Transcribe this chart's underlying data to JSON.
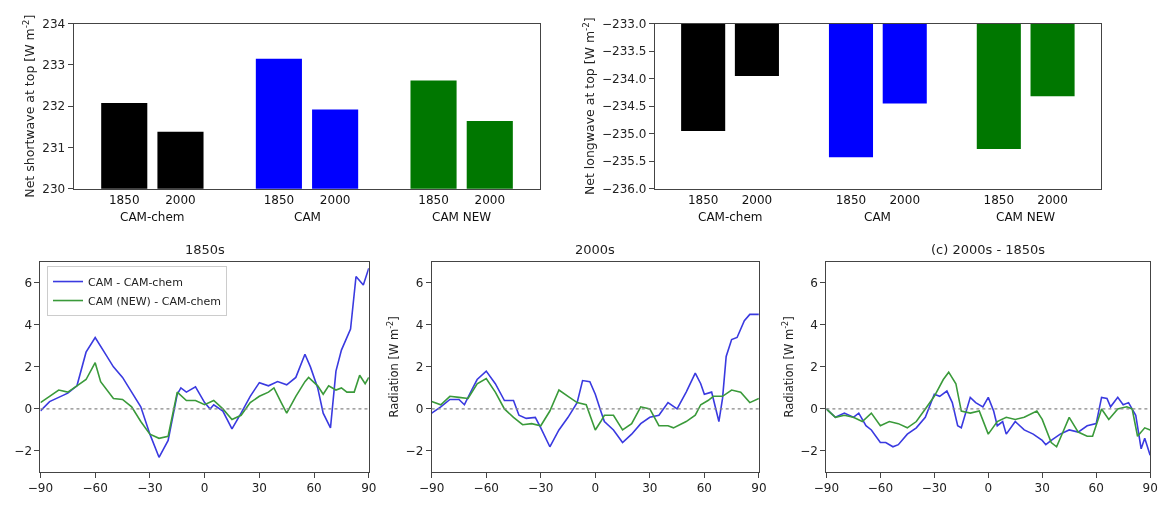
{
  "chart_data": [
    {
      "type": "bar",
      "ylabel": "Net shortwave at top [W m$^{-2}$]",
      "categories": [
        "1850",
        "2000",
        "1850",
        "2000",
        "1850",
        "2000"
      ],
      "values": [
        232.08,
        231.38,
        233.15,
        231.92,
        232.62,
        231.64
      ],
      "colors": [
        "#000000",
        "#000000",
        "#0000ff",
        "#0000ff",
        "#007700",
        "#007700"
      ],
      "ylim": [
        230,
        234
      ],
      "yticks": [
        230,
        231,
        232,
        233,
        234
      ],
      "annotations": [
        "CAM-chem",
        "CAM",
        "CAM NEW"
      ]
    },
    {
      "type": "bar",
      "ylabel": "Net longwave at top [W m$^{-2}$]",
      "categories": [
        "1850",
        "2000",
        "1850",
        "2000",
        "1850",
        "2000"
      ],
      "values": [
        -234.95,
        -233.95,
        -235.43,
        -234.45,
        -235.28,
        -234.32
      ],
      "colors": [
        "#000000",
        "#000000",
        "#0000ff",
        "#0000ff",
        "#007700",
        "#007700"
      ],
      "ylim": [
        -236,
        -233
      ],
      "yticks": [
        {
          "value": -236,
          "label": "−236.0"
        },
        {
          "value": -235.5,
          "label": "−235.5"
        },
        {
          "value": -235,
          "label": "−235.0"
        },
        {
          "value": -234.5,
          "label": "−234.5"
        },
        {
          "value": -234,
          "label": "−234.0"
        },
        {
          "value": -233.5,
          "label": "−233.5"
        },
        {
          "value": -233,
          "label": "−233.0"
        }
      ],
      "annotations": [
        "CAM-chem",
        "CAM",
        "CAM NEW"
      ]
    },
    {
      "type": "line",
      "title": "1850s",
      "xlim": [
        -90,
        90
      ],
      "xticks": [
        {
          "value": -90,
          "label": "−90"
        },
        {
          "value": -60,
          "label": "−60"
        },
        {
          "value": -30,
          "label": "−30"
        },
        0,
        30,
        60,
        90
      ],
      "ylim": [
        -3,
        7
      ],
      "yticks": [
        {
          "value": -2,
          "label": "−2"
        },
        0,
        2,
        4,
        6
      ],
      "legend": "top left",
      "ref_lines": [
        {
          "axis": "y",
          "value": 0,
          "color": "#888888",
          "line_style": "dotted"
        }
      ],
      "series": [
        {
          "name": "CAM - CAM-chem",
          "color": "#3a3ae0",
          "x": [
            -90,
            -85,
            -80,
            -75,
            -70,
            -65,
            -60,
            -55,
            -50,
            -45,
            -40,
            -35,
            -30,
            -25,
            -20,
            -15,
            -13,
            -10,
            -5,
            0,
            3,
            5,
            10,
            15,
            20,
            25,
            30,
            35,
            40,
            45,
            50,
            55,
            58,
            62,
            65,
            69,
            72,
            75,
            80,
            83,
            87,
            90
          ],
          "values": [
            -0.1,
            0.35,
            0.55,
            0.75,
            1.1,
            2.7,
            3.4,
            2.7,
            2.0,
            1.5,
            0.8,
            0.1,
            -1.2,
            -2.3,
            -1.5,
            0.7,
            1.0,
            0.8,
            1.05,
            0.3,
            0.0,
            0.2,
            -0.1,
            -0.95,
            -0.2,
            0.6,
            1.25,
            1.1,
            1.3,
            1.15,
            1.5,
            2.6,
            2.0,
            1.0,
            -0.2,
            -0.9,
            1.8,
            2.8,
            3.8,
            6.3,
            5.9,
            6.7
          ]
        },
        {
          "name": "CAM (NEW) - CAM-chem",
          "color": "#3a9a3a",
          "x": [
            -90,
            -85,
            -80,
            -75,
            -70,
            -65,
            -60,
            -57,
            -50,
            -45,
            -40,
            -35,
            -30,
            -25,
            -20,
            -15,
            -10,
            -5,
            0,
            5,
            10,
            15,
            20,
            25,
            30,
            35,
            38,
            42,
            45,
            50,
            55,
            57,
            62,
            65,
            68,
            72,
            75,
            78,
            82,
            85,
            88,
            90
          ],
          "values": [
            0.3,
            0.6,
            0.9,
            0.8,
            1.1,
            1.4,
            2.2,
            1.3,
            0.5,
            0.45,
            0.1,
            -0.6,
            -1.2,
            -1.4,
            -1.3,
            0.8,
            0.4,
            0.4,
            0.2,
            0.4,
            0.0,
            -0.5,
            -0.3,
            0.3,
            0.6,
            0.8,
            1.0,
            0.3,
            -0.2,
            0.6,
            1.3,
            1.5,
            1.1,
            0.7,
            1.1,
            0.9,
            1.0,
            0.8,
            0.8,
            1.6,
            1.2,
            1.5
          ]
        }
      ]
    },
    {
      "type": "line",
      "title": "2000s",
      "ylabel": "Radiation [W m$^{-2}$]",
      "xlim": [
        -90,
        90
      ],
      "xticks": [
        {
          "value": -90,
          "label": "−90"
        },
        {
          "value": -60,
          "label": "−60"
        },
        {
          "value": -30,
          "label": "−30"
        },
        0,
        30,
        60,
        90
      ],
      "ylim": [
        -3,
        7
      ],
      "yticks": [
        {
          "value": -2,
          "label": "−2"
        },
        0,
        2,
        4,
        6
      ],
      "ref_lines": [
        {
          "axis": "y",
          "value": 0,
          "color": "#888888",
          "line_style": "dotted"
        }
      ],
      "series": [
        {
          "color": "#3a3ae0",
          "x": [
            -90,
            -85,
            -80,
            -75,
            -72,
            -68,
            -65,
            -60,
            -55,
            -50,
            -45,
            -42,
            -38,
            -33,
            -30,
            -25,
            -20,
            -15,
            -10,
            -7,
            -3,
            0,
            3,
            5,
            10,
            15,
            20,
            25,
            30,
            35,
            40,
            45,
            50,
            55,
            58,
            60,
            64,
            68,
            70,
            72,
            75,
            78,
            82,
            85,
            90
          ],
          "values": [
            -0.2,
            0.1,
            0.45,
            0.45,
            0.2,
            0.9,
            1.4,
            1.8,
            1.2,
            0.4,
            0.4,
            -0.3,
            -0.45,
            -0.4,
            -0.9,
            -1.8,
            -1.0,
            -0.4,
            0.3,
            1.35,
            1.3,
            0.7,
            -0.1,
            -0.6,
            -1.0,
            -1.6,
            -1.2,
            -0.7,
            -0.4,
            -0.3,
            0.3,
            0.0,
            0.8,
            1.7,
            1.2,
            0.7,
            0.8,
            -0.6,
            0.5,
            2.5,
            3.3,
            3.4,
            4.2,
            4.5,
            4.5
          ]
        },
        {
          "color": "#3a9a3a",
          "x": [
            -90,
            -85,
            -80,
            -75,
            -70,
            -65,
            -60,
            -55,
            -50,
            -45,
            -40,
            -35,
            -30,
            -25,
            -20,
            -15,
            -10,
            -5,
            0,
            3,
            5,
            10,
            15,
            20,
            25,
            30,
            35,
            40,
            43,
            50,
            55,
            58,
            62,
            65,
            70,
            75,
            80,
            85,
            90
          ],
          "values": [
            0.35,
            0.2,
            0.6,
            0.55,
            0.5,
            1.2,
            1.45,
            0.8,
            0.0,
            -0.4,
            -0.75,
            -0.7,
            -0.8,
            -0.1,
            0.9,
            0.6,
            0.3,
            0.2,
            -1.0,
            -0.6,
            -0.3,
            -0.3,
            -1.0,
            -0.7,
            0.1,
            0.0,
            -0.8,
            -0.8,
            -0.9,
            -0.6,
            -0.3,
            0.2,
            0.4,
            0.6,
            0.6,
            0.9,
            0.8,
            0.3,
            0.5
          ]
        }
      ]
    },
    {
      "type": "line",
      "title": "(c) 2000s - 1850s",
      "ylabel": "Radiation [W m$^{-2}$]",
      "xlim": [
        -90,
        90
      ],
      "xticks": [
        {
          "value": -90,
          "label": "−90"
        },
        {
          "value": -60,
          "label": "−60"
        },
        {
          "value": -30,
          "label": "−30"
        },
        0,
        30,
        60,
        90
      ],
      "ylim": [
        -3,
        7
      ],
      "yticks": [
        {
          "value": -2,
          "label": "−2"
        },
        0,
        2,
        4,
        6
      ],
      "ref_lines": [
        {
          "axis": "y",
          "value": 0,
          "color": "#888888",
          "line_style": "dotted"
        }
      ],
      "series": [
        {
          "color": "#3a3ae0",
          "x": [
            -90,
            -85,
            -80,
            -75,
            -72,
            -68,
            -65,
            -60,
            -57,
            -53,
            -50,
            -45,
            -40,
            -35,
            -30,
            -27,
            -23,
            -20,
            -17,
            -15,
            -10,
            -7,
            -3,
            0,
            3,
            5,
            8,
            10,
            15,
            20,
            25,
            30,
            32,
            35,
            40,
            45,
            50,
            55,
            60,
            63,
            66,
            68,
            72,
            75,
            78,
            82,
            85,
            87,
            90
          ],
          "values": [
            0.0,
            -0.4,
            -0.2,
            -0.4,
            -0.2,
            -0.8,
            -1.0,
            -1.6,
            -1.6,
            -1.8,
            -1.7,
            -1.2,
            -0.9,
            -0.4,
            0.7,
            0.6,
            0.85,
            0.3,
            -0.8,
            -0.9,
            0.55,
            0.3,
            0.1,
            0.55,
            -0.1,
            -0.8,
            -0.6,
            -1.2,
            -0.6,
            -1.0,
            -1.2,
            -1.5,
            -1.7,
            -1.5,
            -1.2,
            -1.0,
            -1.1,
            -0.8,
            -0.7,
            0.55,
            0.5,
            0.1,
            0.55,
            0.2,
            0.3,
            -0.3,
            -1.9,
            -1.4,
            -2.2
          ]
        },
        {
          "color": "#3a9a3a",
          "x": [
            -90,
            -85,
            -80,
            -75,
            -70,
            -65,
            -60,
            -55,
            -50,
            -45,
            -40,
            -35,
            -30,
            -25,
            -22,
            -18,
            -15,
            -10,
            -5,
            0,
            5,
            10,
            15,
            20,
            27,
            30,
            35,
            38,
            42,
            45,
            50,
            55,
            58,
            63,
            67,
            72,
            77,
            80,
            83,
            87,
            90
          ],
          "values": [
            0.0,
            -0.4,
            -0.3,
            -0.4,
            -0.6,
            -0.2,
            -0.8,
            -0.6,
            -0.7,
            -0.9,
            -0.6,
            0.0,
            0.6,
            1.4,
            1.75,
            1.2,
            -0.1,
            -0.2,
            -0.1,
            -1.2,
            -0.6,
            -0.4,
            -0.5,
            -0.4,
            -0.1,
            -0.5,
            -1.6,
            -1.8,
            -1.0,
            -0.4,
            -1.1,
            -1.3,
            -1.3,
            0.0,
            -0.5,
            0.0,
            0.1,
            0.0,
            -1.3,
            -0.9,
            -1.0
          ]
        }
      ]
    }
  ]
}
